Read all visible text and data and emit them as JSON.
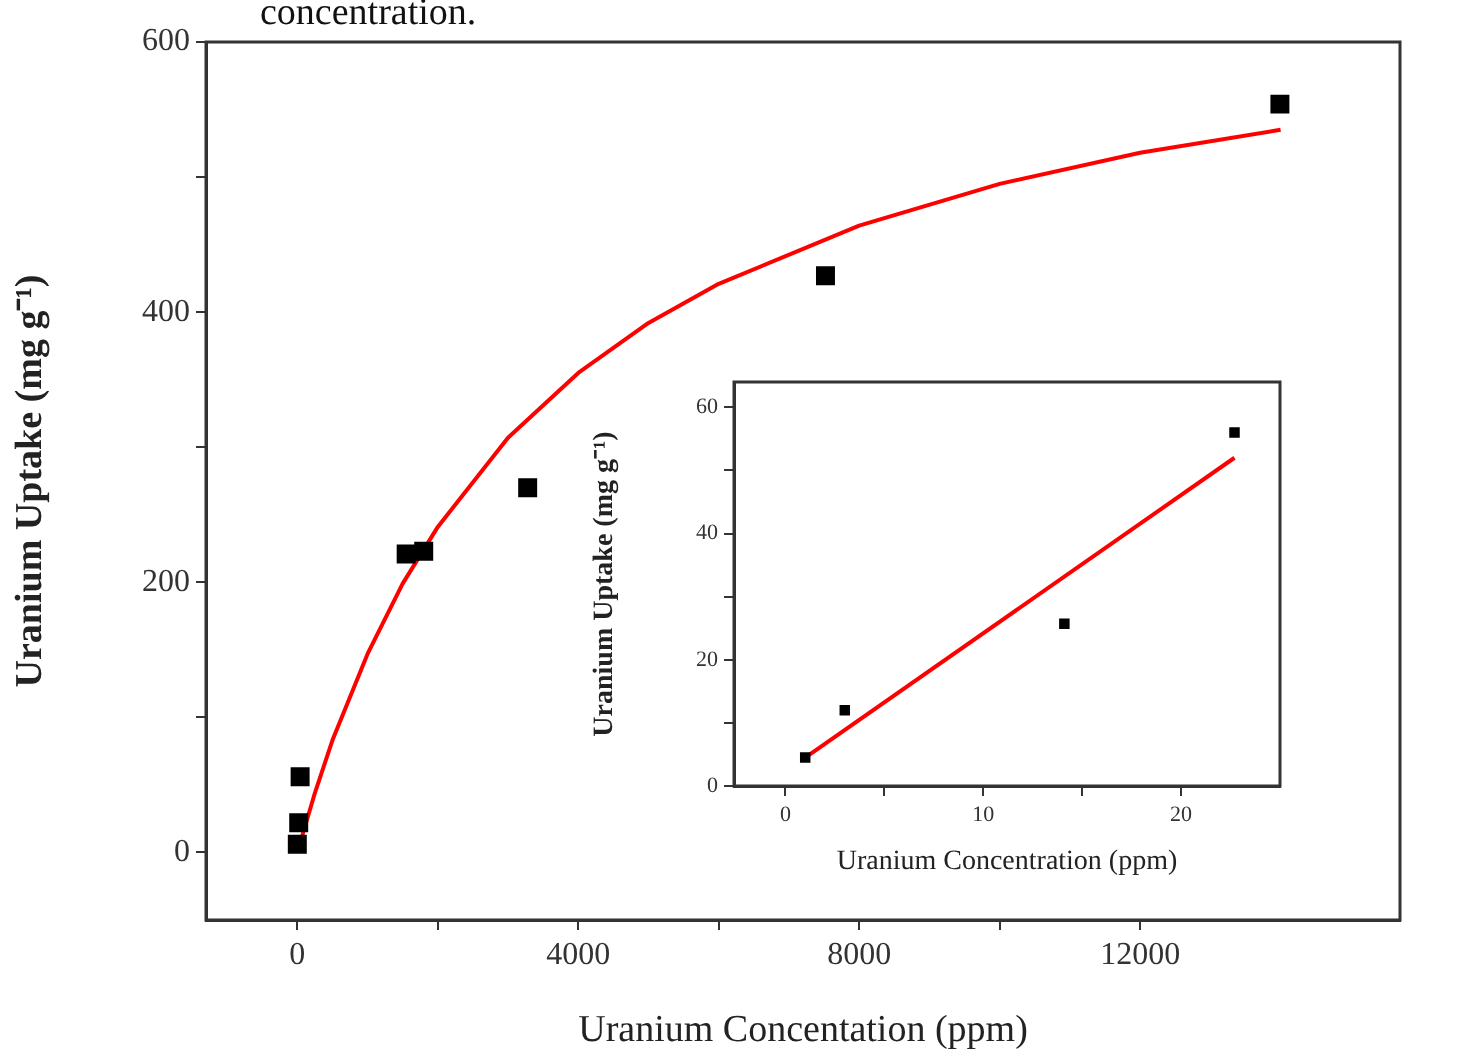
{
  "chart_data": [
    {
      "type": "scatter",
      "annotations": [
        "concentration."
      ],
      "xlabel": "Uranium Concentation (ppm)",
      "ylabel": "Uranium Uptake (mg g⁻¹)",
      "xlim": [
        -1300,
        15700
      ],
      "xticks": [
        0,
        {
          "value": 2000,
          "label": null
        },
        4000,
        {
          "value": 6000,
          "label": null
        },
        8000,
        {
          "value": 10000,
          "label": null
        },
        12000
      ],
      "ylim": [
        -50,
        600
      ],
      "yticks": [
        0,
        {
          "value": 100,
          "label": null
        },
        200,
        {
          "value": 300,
          "label": null
        },
        400,
        {
          "value": 500,
          "label": null
        },
        600
      ],
      "grid": false,
      "legend": false,
      "series": [
        {
          "type": "scatter",
          "marker": "square",
          "color": "#000000",
          "x": [
            0,
            20,
            40,
            1550,
            1800,
            3280,
            7520,
            13990
          ],
          "values": [
            6,
            22,
            56,
            221,
            223,
            270,
            427,
            554
          ]
        },
        {
          "type": "line",
          "marker": "none",
          "color": "#ff0000",
          "x": [
            0,
            250,
            500,
            1000,
            1500,
            2000,
            3000,
            4000,
            5000,
            6000,
            8000,
            10000,
            12000,
            14000
          ],
          "values": [
            0,
            44,
            83,
            147,
            199,
            241,
            307,
            355,
            392,
            421,
            464,
            495,
            518,
            535
          ]
        }
      ]
    },
    {
      "type": "scatter",
      "xlabel": "Uranium Concentration (ppm)",
      "ylabel": "Uranium Uptake (mg g⁻¹)",
      "xlim": [
        -2.6,
        25
      ],
      "xticks": [
        0,
        {
          "value": 5,
          "label": null
        },
        10,
        {
          "value": 15,
          "label": null
        },
        20
      ],
      "ylim": [
        0,
        64
      ],
      "yticks": [
        0,
        {
          "value": 10,
          "label": null
        },
        20,
        {
          "value": 30,
          "label": null
        },
        40,
        {
          "value": 50,
          "label": null
        },
        60
      ],
      "grid": false,
      "legend": false,
      "series": [
        {
          "type": "scatter",
          "marker": "square",
          "color": "#000000",
          "x": [
            1,
            3,
            14.1,
            22.7
          ],
          "values": [
            4.5,
            12,
            25.7,
            56
          ]
        },
        {
          "type": "line",
          "marker": "none",
          "color": "#ff0000",
          "x": [
            1,
            22.7
          ],
          "values": [
            4.5,
            52
          ]
        }
      ]
    }
  ]
}
